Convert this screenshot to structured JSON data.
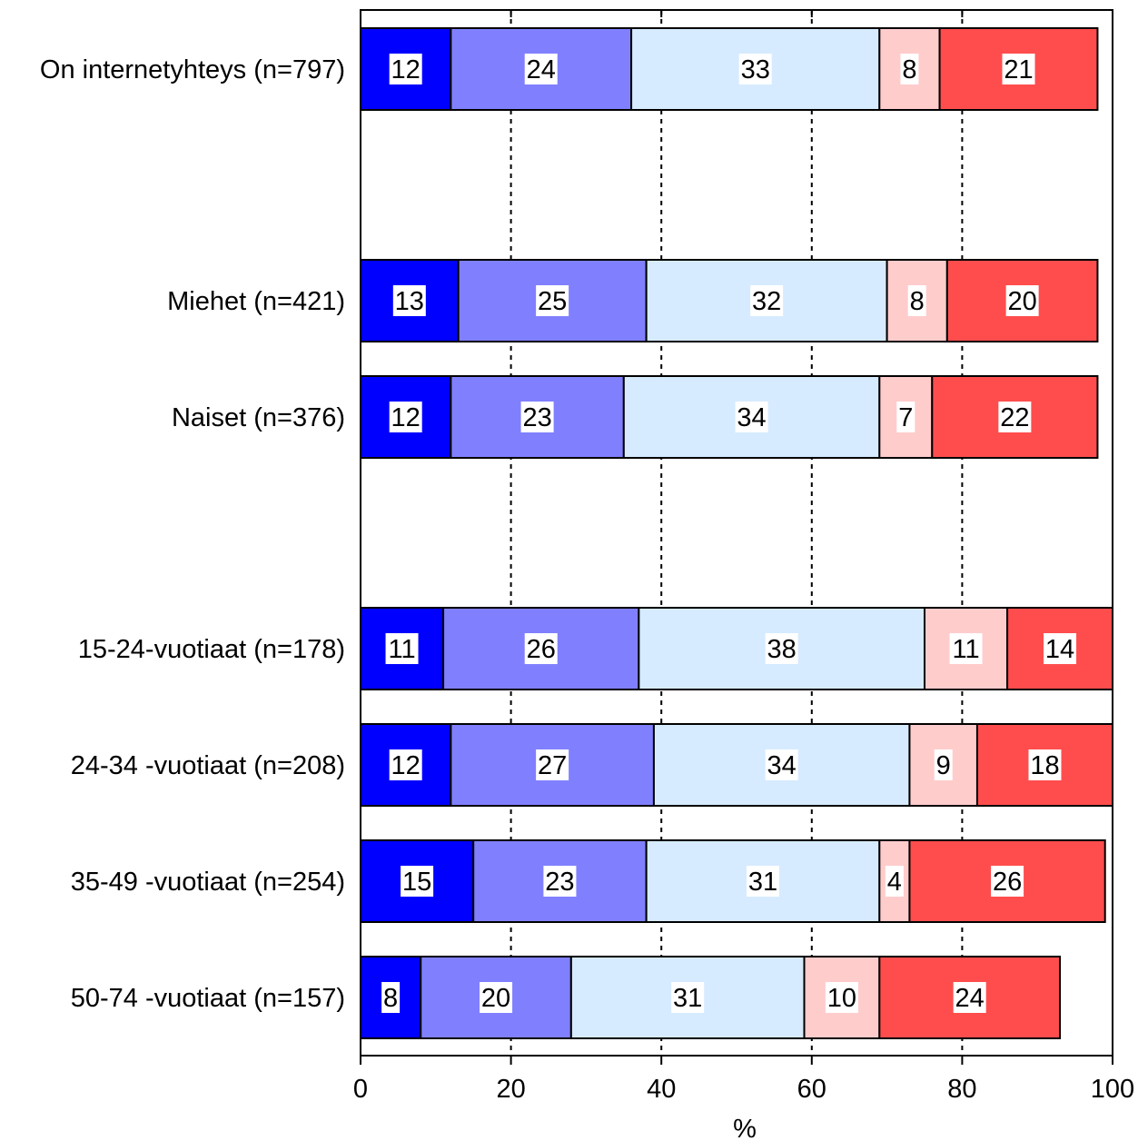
{
  "chart_data": {
    "type": "bar",
    "orientation": "horizontal",
    "stacked": true,
    "title": "",
    "xlabel": "%",
    "ylabel": "",
    "xlim": [
      0,
      100
    ],
    "xticks": [
      0,
      20,
      40,
      60,
      80,
      100
    ],
    "grid": "vertical dashed",
    "legend": "none",
    "colors": [
      "#0000ff",
      "#8080ff",
      "#d6ebff",
      "#ffcccc",
      "#ff4d4d"
    ],
    "categories": [
      "On internetyhteys (n=797)",
      "Miehet (n=421)",
      "Naiset (n=376)",
      "15-24-vuotiaat (n=178)",
      "24-34 -vuotiaat (n=208)",
      "35-49 -vuotiaat (n=254)",
      "50-74 -vuotiaat (n=157)"
    ],
    "rows": [
      [
        12,
        24,
        33,
        8,
        21
      ],
      [
        13,
        25,
        32,
        8,
        20
      ],
      [
        12,
        23,
        34,
        7,
        22
      ],
      [
        11,
        26,
        38,
        11,
        14
      ],
      [
        12,
        27,
        34,
        9,
        18
      ],
      [
        15,
        23,
        31,
        4,
        26
      ],
      [
        8,
        20,
        31,
        10,
        24
      ]
    ]
  }
}
